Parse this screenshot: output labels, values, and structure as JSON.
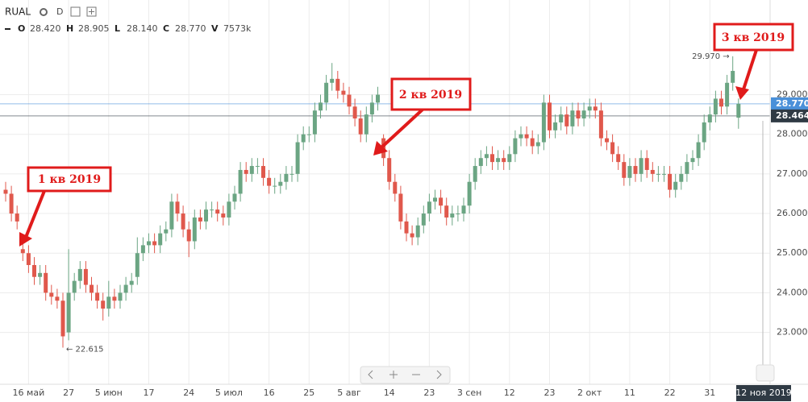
{
  "header": {
    "symbol": "RUAL",
    "interval": "D",
    "ohlcv": [
      {
        "key": "O",
        "value": "28.420"
      },
      {
        "key": "H",
        "value": "28.905"
      },
      {
        "key": "L",
        "value": "28.140"
      },
      {
        "key": "C",
        "value": "28.770"
      },
      {
        "key": "V",
        "value": "7573k"
      }
    ]
  },
  "chart_data": {
    "type": "candlestick",
    "categories": [
      null,
      null,
      null,
      null,
      "16 май",
      null,
      null,
      null,
      null,
      null,
      null,
      "27",
      null,
      null,
      null,
      null,
      null,
      null,
      "5 июн",
      null,
      null,
      null,
      null,
      null,
      null,
      "17",
      null,
      null,
      null,
      null,
      null,
      null,
      "24",
      null,
      null,
      null,
      null,
      null,
      null,
      "5 июл",
      null,
      null,
      null,
      null,
      null,
      null,
      "16",
      null,
      null,
      null,
      null,
      null,
      null,
      "25",
      null,
      null,
      null,
      null,
      null,
      null,
      "5 авг",
      null,
      null,
      null,
      null,
      null,
      null,
      "14",
      null,
      null,
      null,
      null,
      null,
      null,
      "23",
      null,
      null,
      null,
      null,
      null,
      null,
      "3 сен",
      null,
      null,
      null,
      null,
      null,
      null,
      "12",
      null,
      null,
      null,
      null,
      null,
      null,
      "23",
      null,
      null,
      null,
      null,
      null,
      null,
      "2 окт",
      null,
      null,
      null,
      null,
      null,
      null,
      "11",
      null,
      null,
      null,
      null,
      null,
      null,
      "22",
      null,
      null,
      null,
      null,
      null,
      null,
      "31",
      null,
      null,
      null,
      null,
      null
    ],
    "open": [
      26.6,
      26.5,
      26.0,
      25.1,
      25.0,
      24.7,
      24.4,
      24.5,
      24.0,
      23.9,
      23.8,
      23.0,
      24.0,
      24.3,
      24.6,
      24.2,
      24.0,
      23.8,
      23.6,
      23.9,
      23.8,
      24.0,
      24.2,
      24.4,
      25.0,
      25.2,
      25.3,
      25.2,
      25.5,
      25.6,
      26.3,
      26.0,
      25.6,
      25.3,
      25.9,
      25.8,
      26.1,
      26.1,
      26.0,
      25.9,
      26.3,
      26.5,
      27.1,
      27.0,
      27.2,
      27.2,
      26.9,
      26.7,
      26.7,
      26.8,
      27.0,
      27.0,
      27.8,
      28.0,
      28.0,
      28.6,
      28.8,
      29.3,
      29.4,
      29.1,
      29.0,
      28.7,
      28.4,
      28.0,
      28.5,
      28.8,
      27.9,
      27.4,
      26.8,
      26.5,
      25.8,
      25.5,
      25.4,
      25.7,
      26.0,
      26.3,
      26.4,
      26.2,
      25.9,
      26.0,
      26.0,
      26.2,
      26.8,
      27.2,
      27.4,
      27.5,
      27.3,
      27.4,
      27.3,
      27.5,
      27.9,
      28.0,
      27.9,
      27.7,
      27.8,
      28.8,
      28.1,
      28.3,
      28.5,
      28.2,
      28.6,
      28.4,
      28.6,
      28.7,
      28.6,
      27.9,
      27.8,
      27.5,
      27.3,
      26.9,
      27.2,
      27.0,
      27.4,
      27.1,
      27.0,
      27.0,
      27.0,
      26.6,
      26.8,
      27.0,
      27.3,
      27.4,
      27.8,
      28.3,
      28.5,
      28.9,
      28.7,
      29.3,
      28.42
    ],
    "high": [
      26.8,
      26.7,
      26.2,
      25.3,
      25.2,
      24.9,
      24.7,
      24.7,
      24.2,
      24.1,
      24.0,
      25.1,
      24.5,
      24.8,
      24.8,
      24.4,
      24.2,
      24.0,
      24.3,
      24.1,
      24.2,
      24.4,
      24.5,
      25.4,
      25.4,
      25.5,
      25.5,
      25.7,
      25.8,
      26.5,
      26.5,
      26.2,
      25.8,
      26.1,
      26.1,
      26.3,
      26.3,
      26.3,
      26.2,
      26.5,
      26.7,
      27.3,
      27.3,
      27.4,
      27.4,
      27.4,
      27.1,
      26.9,
      27.0,
      27.2,
      27.2,
      28.0,
      28.2,
      28.2,
      28.8,
      29.0,
      29.5,
      29.8,
      29.6,
      29.3,
      29.2,
      28.9,
      28.6,
      28.7,
      29.0,
      29.2,
      28.0,
      27.6,
      27.0,
      26.7,
      26.0,
      25.7,
      25.9,
      26.2,
      26.5,
      26.6,
      26.6,
      26.4,
      26.2,
      26.2,
      26.4,
      27.0,
      27.4,
      27.6,
      27.7,
      27.7,
      27.6,
      27.6,
      27.7,
      28.1,
      28.2,
      28.2,
      28.1,
      28.0,
      29.0,
      29.0,
      28.5,
      28.7,
      28.7,
      28.8,
      28.8,
      28.8,
      28.9,
      28.9,
      28.8,
      28.1,
      28.0,
      27.7,
      27.5,
      27.4,
      27.4,
      27.6,
      27.6,
      27.3,
      27.2,
      27.2,
      27.2,
      27.0,
      27.2,
      27.5,
      27.6,
      28.0,
      28.5,
      28.7,
      29.1,
      29.1,
      29.5,
      29.97,
      28.905
    ],
    "low": [
      26.3,
      25.8,
      25.6,
      24.8,
      24.5,
      24.2,
      24.2,
      23.8,
      23.7,
      23.6,
      22.615,
      22.8,
      23.8,
      24.1,
      24.0,
      23.8,
      23.6,
      23.3,
      23.4,
      23.6,
      23.6,
      23.8,
      24.0,
      24.2,
      24.8,
      25.0,
      25.0,
      25.0,
      25.3,
      25.4,
      25.8,
      25.4,
      24.9,
      25.1,
      25.6,
      25.6,
      25.9,
      25.8,
      25.7,
      25.7,
      26.1,
      26.3,
      26.8,
      26.8,
      27.0,
      26.7,
      26.5,
      26.5,
      26.5,
      26.6,
      26.8,
      26.8,
      27.6,
      27.8,
      27.8,
      28.4,
      28.6,
      29.1,
      28.9,
      28.8,
      28.5,
      28.2,
      27.8,
      27.8,
      28.3,
      28.6,
      27.2,
      26.6,
      26.3,
      25.6,
      25.3,
      25.2,
      25.2,
      25.5,
      25.8,
      26.1,
      26.0,
      25.7,
      25.7,
      25.8,
      25.8,
      26.0,
      26.6,
      27.0,
      27.2,
      27.1,
      27.1,
      27.1,
      27.1,
      27.3,
      27.7,
      27.7,
      27.5,
      27.5,
      27.6,
      27.9,
      27.9,
      28.1,
      28.0,
      28.0,
      28.2,
      28.2,
      28.4,
      28.4,
      27.7,
      27.6,
      27.3,
      27.1,
      26.7,
      26.7,
      26.8,
      26.8,
      26.9,
      26.8,
      26.8,
      26.8,
      26.4,
      26.4,
      26.6,
      26.8,
      27.1,
      27.2,
      27.6,
      28.1,
      28.3,
      28.5,
      28.5,
      29.1,
      28.14
    ],
    "close": [
      26.5,
      26.0,
      25.8,
      25.0,
      24.7,
      24.4,
      24.5,
      24.0,
      23.9,
      23.8,
      22.9,
      24.0,
      24.3,
      24.6,
      24.2,
      24.0,
      23.8,
      23.6,
      23.9,
      23.8,
      24.0,
      24.2,
      24.3,
      25.0,
      25.2,
      25.3,
      25.2,
      25.5,
      25.6,
      26.3,
      26.0,
      25.6,
      25.3,
      25.9,
      25.8,
      26.1,
      26.1,
      26.0,
      25.9,
      26.3,
      26.5,
      27.1,
      27.0,
      27.2,
      27.2,
      26.9,
      26.7,
      26.7,
      26.8,
      27.0,
      27.0,
      27.8,
      28.0,
      28.0,
      28.6,
      28.8,
      29.3,
      29.4,
      29.1,
      29.0,
      28.7,
      28.4,
      28.0,
      28.5,
      28.8,
      29.0,
      27.4,
      26.8,
      26.5,
      25.8,
      25.5,
      25.4,
      25.7,
      26.0,
      26.3,
      26.4,
      26.2,
      25.9,
      26.0,
      26.0,
      26.2,
      26.8,
      27.2,
      27.4,
      27.5,
      27.3,
      27.4,
      27.3,
      27.5,
      27.9,
      28.0,
      27.9,
      27.7,
      27.8,
      28.8,
      28.1,
      28.3,
      28.5,
      28.2,
      28.6,
      28.4,
      28.6,
      28.7,
      28.6,
      27.9,
      27.8,
      27.5,
      27.3,
      26.9,
      27.2,
      27.0,
      27.4,
      27.1,
      27.0,
      27.0,
      27.0,
      26.6,
      26.8,
      27.0,
      27.3,
      27.4,
      27.8,
      28.3,
      28.5,
      28.9,
      28.7,
      29.3,
      29.6,
      28.77
    ],
    "up_color": "#6ba583",
    "down_color": "#e0584c",
    "ylim": [
      21.69,
      31.39
    ],
    "yticks": [
      {
        "value": 23,
        "label": "23.000"
      },
      {
        "value": 24,
        "label": "24.000"
      },
      {
        "value": 25,
        "label": "25.000"
      },
      {
        "value": 26,
        "label": "26.000"
      },
      {
        "value": 27,
        "label": "27.000"
      },
      {
        "value": 28,
        "label": "28.000"
      },
      {
        "value": 29,
        "label": "29.000"
      }
    ],
    "grid": true,
    "price_lines": [
      {
        "value": 28.77,
        "label": "28.770",
        "color": "#4a90d9"
      },
      {
        "value": 28.464,
        "label": "28.464",
        "color": "#2f3a44"
      }
    ],
    "high_label": "29.970 →",
    "low_label": "← 22.615",
    "cursor_label": "12 ноя 2019",
    "callouts": [
      "1 кв 2019",
      "2 кв 2019",
      "3 кв 2019"
    ]
  }
}
